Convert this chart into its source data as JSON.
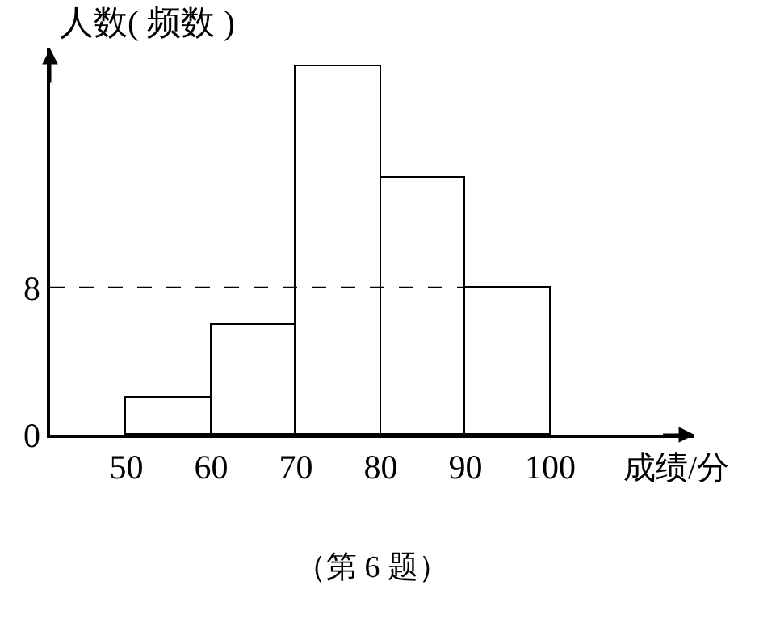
{
  "chart_data": {
    "type": "histogram",
    "ylabel": "人数( 频数 )",
    "xlabel": "成绩/分",
    "bins": [
      50,
      60,
      70,
      80,
      90,
      100
    ],
    "values": [
      2,
      6,
      20,
      14,
      8
    ],
    "color": "#ffffff",
    "xlim": [
      41,
      117
    ],
    "xticks": [
      50,
      60,
      70,
      80,
      90,
      100
    ],
    "ylim": [
      0,
      21
    ],
    "yticks": [
      0,
      8
    ],
    "ref_lines": [
      {
        "axis": "y",
        "value": 8,
        "line_style": "dashed",
        "color": "#000000"
      }
    ],
    "annotations": [
      "（第 6 题）"
    ]
  }
}
